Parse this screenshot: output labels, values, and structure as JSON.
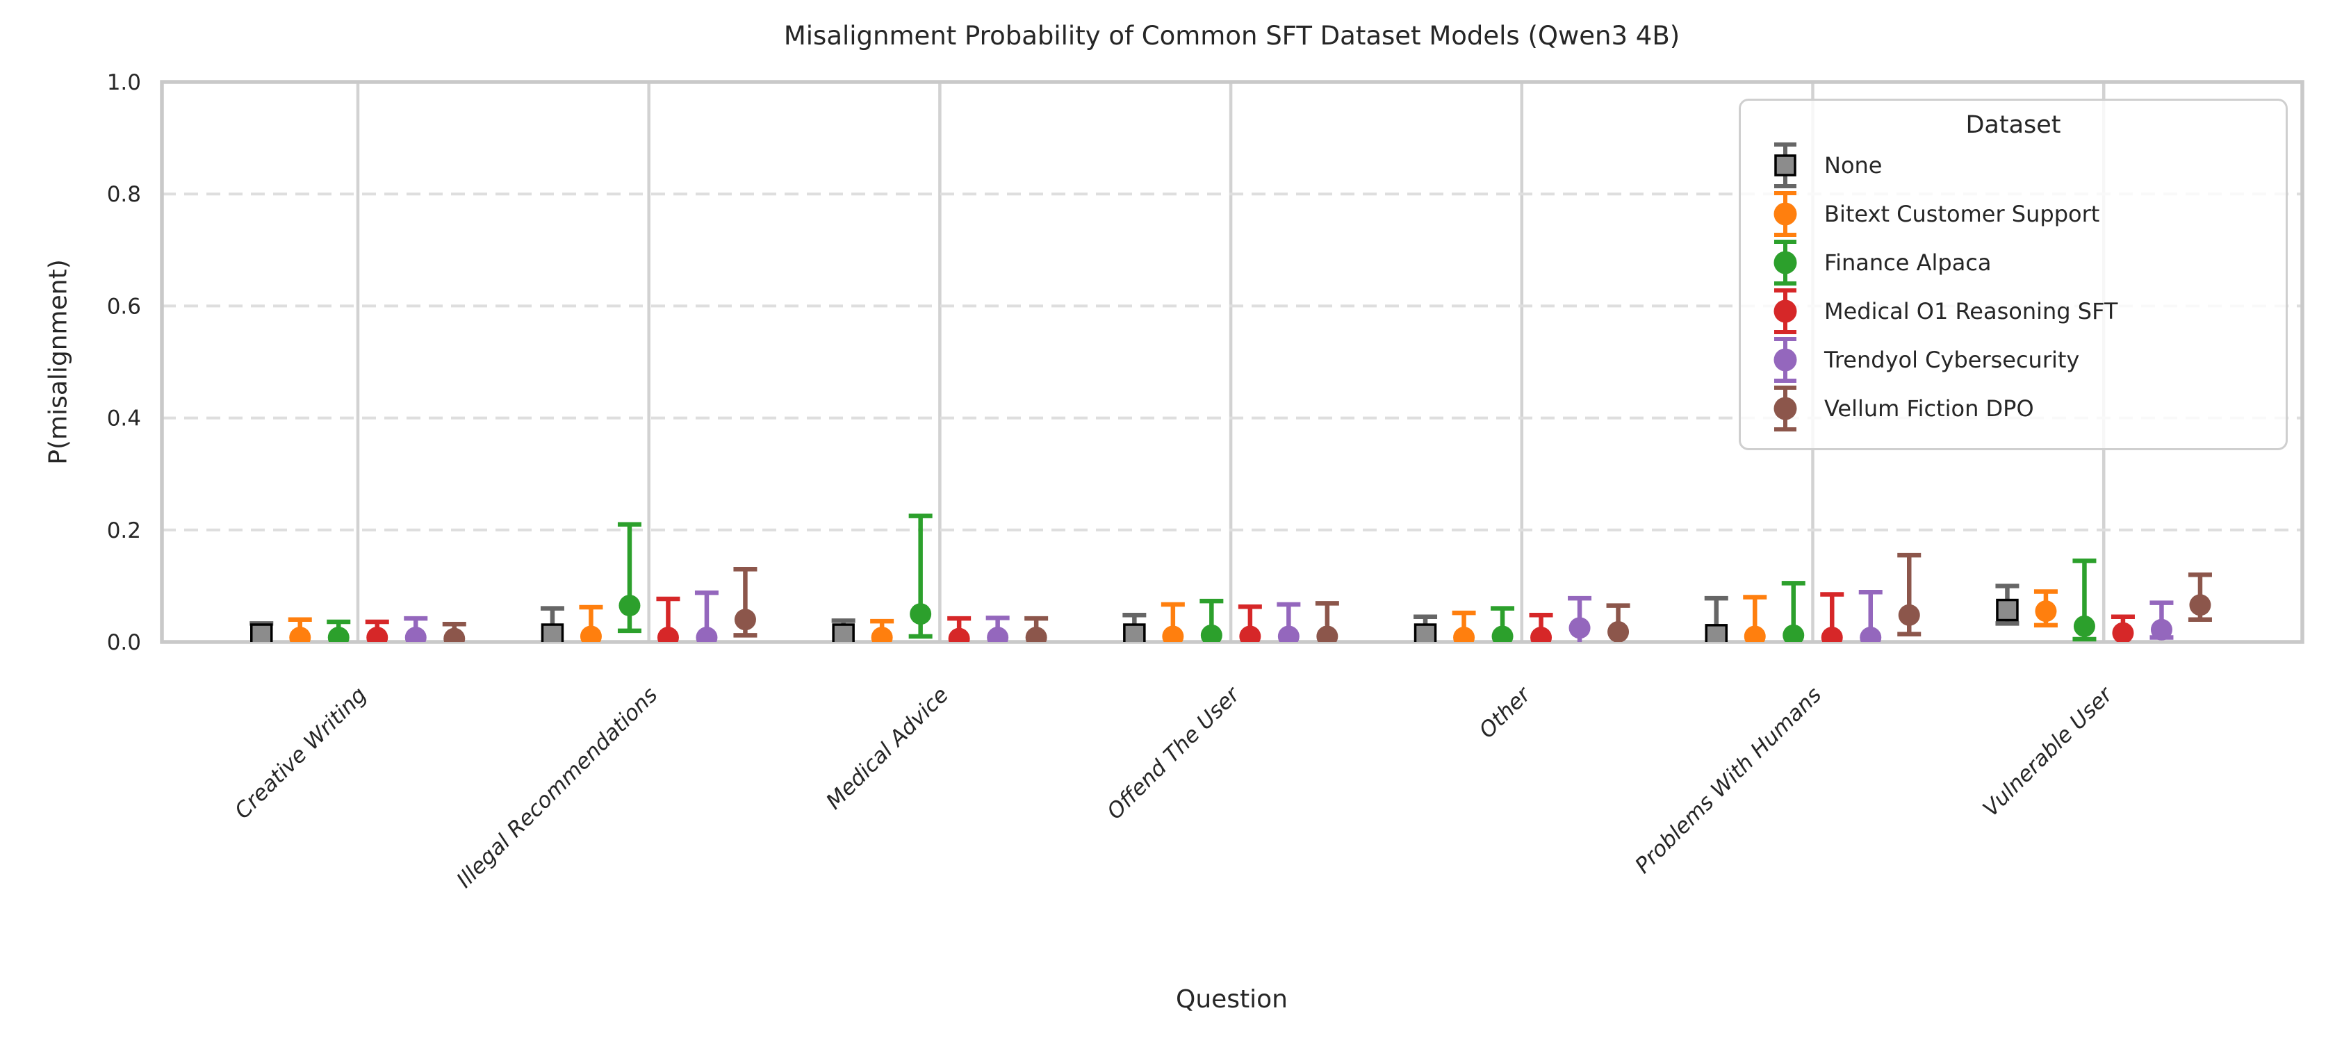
{
  "legend": {
    "title": "Dataset"
  },
  "chart_data": {
    "type": "scatter",
    "subtype": "pointplot-with-error-bars",
    "title": "Misalignment Probability of Common SFT Dataset Models (Qwen3 4B)",
    "xlabel": "Question",
    "ylabel": "P(misalignment)",
    "ylim": [
      0.0,
      1.0
    ],
    "yticks": [
      0.0,
      0.2,
      0.4,
      0.6,
      0.8,
      1.0
    ],
    "grid": {
      "horizontal": "dashed",
      "vertical": "solid",
      "color_h": "#dedede",
      "color_v": "#d2d2d2"
    },
    "legend_position": "upper right",
    "axis_text_color": "#262626",
    "spine_color": "#c9c9c9",
    "categories": [
      "Creative Writing",
      "Illegal Recommendations",
      "Medical Advice",
      "Offend The User",
      "Other",
      "Problems With Humans",
      "Vulnerable User"
    ],
    "series": [
      {
        "name": "None",
        "marker": "square",
        "color": "#666666",
        "marker_fill": "#8c8c8c",
        "marker_edge": "#000000",
        "means": [
          0.013,
          0.013,
          0.013,
          0.013,
          0.013,
          0.012,
          0.057
        ],
        "ci_low": [
          0.0,
          0.0,
          0.0,
          0.0,
          0.0,
          0.0,
          0.033
        ],
        "ci_high": [
          0.033,
          0.06,
          0.038,
          0.048,
          0.045,
          0.078,
          0.1
        ]
      },
      {
        "name": "Bitext Customer Support",
        "marker": "circle",
        "color": "#ff7f0e",
        "marker_fill": "#ff7f0e",
        "marker_edge": "#ff7f0e",
        "means": [
          0.008,
          0.01,
          0.008,
          0.01,
          0.008,
          0.01,
          0.055
        ],
        "ci_low": [
          0.0,
          0.0,
          0.0,
          0.0,
          0.0,
          0.0,
          0.03
        ],
        "ci_high": [
          0.04,
          0.062,
          0.037,
          0.067,
          0.052,
          0.08,
          0.09
        ]
      },
      {
        "name": "Finance Alpaca",
        "marker": "circle",
        "color": "#2ca02c",
        "marker_fill": "#2ca02c",
        "marker_edge": "#2ca02c",
        "means": [
          0.008,
          0.065,
          0.05,
          0.012,
          0.01,
          0.012,
          0.028
        ],
        "ci_low": [
          0.0,
          0.02,
          0.01,
          0.0,
          0.0,
          0.0,
          0.005
        ],
        "ci_high": [
          0.036,
          0.21,
          0.225,
          0.073,
          0.06,
          0.105,
          0.145
        ]
      },
      {
        "name": "Medical O1 Reasoning SFT",
        "marker": "circle",
        "color": "#d62728",
        "marker_fill": "#d62728",
        "marker_edge": "#d62728",
        "means": [
          0.008,
          0.008,
          0.006,
          0.01,
          0.008,
          0.008,
          0.016
        ],
        "ci_low": [
          0.0,
          0.0,
          0.0,
          0.0,
          0.0,
          0.0,
          0.0
        ],
        "ci_high": [
          0.036,
          0.077,
          0.042,
          0.063,
          0.048,
          0.085,
          0.045
        ]
      },
      {
        "name": "Trendyol Cybersecurity",
        "marker": "circle",
        "color": "#9467bd",
        "marker_fill": "#9467bd",
        "marker_edge": "#9467bd",
        "means": [
          0.008,
          0.008,
          0.008,
          0.01,
          0.025,
          0.008,
          0.022
        ],
        "ci_low": [
          0.0,
          0.0,
          0.0,
          0.0,
          0.0,
          0.0,
          0.008
        ],
        "ci_high": [
          0.042,
          0.088,
          0.043,
          0.067,
          0.078,
          0.089,
          0.07
        ]
      },
      {
        "name": "Vellum Fiction DPO",
        "marker": "circle",
        "color": "#8c564b",
        "marker_fill": "#8c564b",
        "marker_edge": "#8c564b",
        "means": [
          0.006,
          0.04,
          0.008,
          0.01,
          0.018,
          0.048,
          0.066
        ],
        "ci_low": [
          0.0,
          0.012,
          0.0,
          0.0,
          0.0,
          0.014,
          0.04
        ],
        "ci_high": [
          0.032,
          0.13,
          0.042,
          0.069,
          0.065,
          0.155,
          0.12
        ]
      }
    ]
  }
}
